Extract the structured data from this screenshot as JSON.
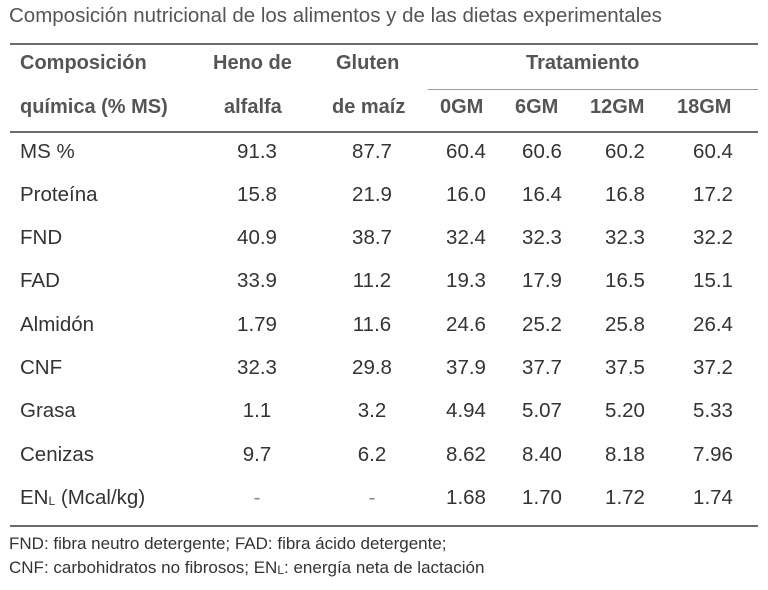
{
  "title": "Composición nutricional de los alimentos y de las dietas experimentales",
  "header": {
    "col0_line1": "Composición",
    "col0_line2": "química (% MS)",
    "col1_line1": "Heno de",
    "col1_line2": "alfalfa",
    "col2_line1": "Gluten",
    "col2_line2": "de maíz",
    "group": "Tratamiento",
    "treatments": [
      "0GM",
      "6GM",
      "12GM",
      "18GM"
    ]
  },
  "rows": [
    {
      "label": "MS %",
      "values": [
        "91.3",
        "87.7",
        "60.4",
        "60.6",
        "60.2",
        "60.4"
      ]
    },
    {
      "label": "Proteína",
      "values": [
        "15.8",
        "21.9",
        "16.0",
        "16.4",
        "16.8",
        "17.2"
      ]
    },
    {
      "label": "FND",
      "values": [
        "40.9",
        "38.7",
        "32.4",
        "32.3",
        "32.3",
        "32.2"
      ]
    },
    {
      "label": "FAD",
      "values": [
        "33.9",
        "11.2",
        "19.3",
        "17.9",
        "16.5",
        "15.1"
      ]
    },
    {
      "label": "Almidón",
      "values": [
        "1.79",
        "11.6",
        "24.6",
        "25.2",
        "25.8",
        "26.4"
      ]
    },
    {
      "label": "CNF",
      "values": [
        "32.3",
        "29.8",
        "37.9",
        "37.7",
        "37.5",
        "37.2"
      ]
    },
    {
      "label": "Grasa",
      "values": [
        "1.1",
        "3.2",
        "4.94",
        "5.07",
        "5.20",
        "5.33"
      ]
    },
    {
      "label": "Cenizas",
      "values": [
        "9.7",
        "6.2",
        "8.62",
        "8.40",
        "8.18",
        "7.96"
      ]
    },
    {
      "label_main": "EN",
      "label_sub": "L",
      "label_rest": " (Mcal/kg)",
      "values": [
        "-",
        "-",
        "1.68",
        "1.70",
        "1.72",
        "1.74"
      ]
    }
  ],
  "footnotes": {
    "line1": "FND: fibra neutro detergente; FAD: fibra ácido detergente;",
    "line2_a": "CNF: carbohidratos no fibrosos; EN",
    "line2_sub": "L",
    "line2_b": ": energía neta de lactación"
  }
}
